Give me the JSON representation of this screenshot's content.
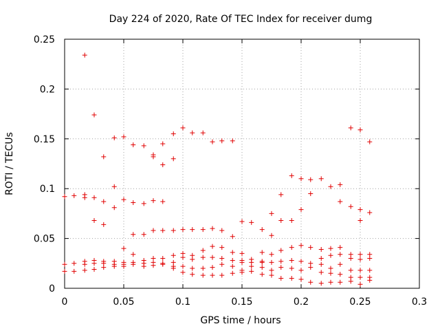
{
  "chart_data": {
    "type": "scatter",
    "title": "Day 224 of 2020, Rate Of TEC Index for receiver dumg",
    "xlabel": "GPS time / hours",
    "ylabel": "ROTI / TECUs",
    "xlim": [
      0,
      0.3
    ],
    "ylim": [
      0,
      0.25
    ],
    "xticks": [
      0,
      0.05,
      0.1,
      0.15,
      0.2,
      0.25,
      0.3
    ],
    "xtick_labels": [
      "0",
      "0.05",
      "0.1",
      "0.15",
      "0.2",
      "0.25",
      "0.3"
    ],
    "yticks": [
      0,
      0.05,
      0.1,
      0.15,
      0.2,
      0.25
    ],
    "ytick_labels": [
      "0",
      "0.05",
      "0.1",
      "0.15",
      "0.2",
      "0.25"
    ],
    "grid": true,
    "marker": "+",
    "color": "#e00000",
    "series": [
      {
        "points": [
          [
            0.0,
            0.092
          ],
          [
            0.0,
            0.024
          ],
          [
            0.0,
            0.017
          ],
          [
            0.008,
            0.093
          ],
          [
            0.008,
            0.025
          ],
          [
            0.008,
            0.017
          ],
          [
            0.017,
            0.234
          ],
          [
            0.017,
            0.094
          ],
          [
            0.017,
            0.091
          ],
          [
            0.017,
            0.027
          ],
          [
            0.017,
            0.024
          ],
          [
            0.017,
            0.018
          ],
          [
            0.025,
            0.174
          ],
          [
            0.025,
            0.091
          ],
          [
            0.025,
            0.068
          ],
          [
            0.025,
            0.028
          ],
          [
            0.025,
            0.025
          ],
          [
            0.025,
            0.019
          ],
          [
            0.033,
            0.132
          ],
          [
            0.033,
            0.087
          ],
          [
            0.033,
            0.064
          ],
          [
            0.033,
            0.027
          ],
          [
            0.033,
            0.025
          ],
          [
            0.033,
            0.021
          ],
          [
            0.042,
            0.151
          ],
          [
            0.042,
            0.102
          ],
          [
            0.042,
            0.081
          ],
          [
            0.042,
            0.027
          ],
          [
            0.042,
            0.024
          ],
          [
            0.042,
            0.022
          ],
          [
            0.05,
            0.152
          ],
          [
            0.05,
            0.089
          ],
          [
            0.05,
            0.04
          ],
          [
            0.05,
            0.026
          ],
          [
            0.05,
            0.024
          ],
          [
            0.05,
            0.022
          ],
          [
            0.058,
            0.144
          ],
          [
            0.058,
            0.086
          ],
          [
            0.058,
            0.054
          ],
          [
            0.058,
            0.034
          ],
          [
            0.058,
            0.026
          ],
          [
            0.058,
            0.024
          ],
          [
            0.067,
            0.143
          ],
          [
            0.067,
            0.085
          ],
          [
            0.067,
            0.054
          ],
          [
            0.067,
            0.028
          ],
          [
            0.067,
            0.025
          ],
          [
            0.067,
            0.022
          ],
          [
            0.075,
            0.134
          ],
          [
            0.075,
            0.132
          ],
          [
            0.075,
            0.088
          ],
          [
            0.075,
            0.058
          ],
          [
            0.075,
            0.03
          ],
          [
            0.075,
            0.026
          ],
          [
            0.075,
            0.023
          ],
          [
            0.083,
            0.145
          ],
          [
            0.083,
            0.124
          ],
          [
            0.083,
            0.087
          ],
          [
            0.083,
            0.058
          ],
          [
            0.083,
            0.03
          ],
          [
            0.083,
            0.025
          ],
          [
            0.083,
            0.024
          ],
          [
            0.092,
            0.155
          ],
          [
            0.092,
            0.13
          ],
          [
            0.092,
            0.058
          ],
          [
            0.092,
            0.033
          ],
          [
            0.092,
            0.026
          ],
          [
            0.092,
            0.022
          ],
          [
            0.092,
            0.02
          ],
          [
            0.1,
            0.161
          ],
          [
            0.1,
            0.059
          ],
          [
            0.1,
            0.035
          ],
          [
            0.1,
            0.031
          ],
          [
            0.1,
            0.022
          ],
          [
            0.1,
            0.016
          ],
          [
            0.108,
            0.156
          ],
          [
            0.108,
            0.059
          ],
          [
            0.108,
            0.033
          ],
          [
            0.108,
            0.029
          ],
          [
            0.108,
            0.02
          ],
          [
            0.108,
            0.014
          ],
          [
            0.117,
            0.156
          ],
          [
            0.117,
            0.059
          ],
          [
            0.117,
            0.038
          ],
          [
            0.117,
            0.031
          ],
          [
            0.117,
            0.02
          ],
          [
            0.117,
            0.013
          ],
          [
            0.125,
            0.147
          ],
          [
            0.125,
            0.06
          ],
          [
            0.125,
            0.042
          ],
          [
            0.125,
            0.031
          ],
          [
            0.125,
            0.021
          ],
          [
            0.125,
            0.013
          ],
          [
            0.133,
            0.148
          ],
          [
            0.133,
            0.058
          ],
          [
            0.133,
            0.041
          ],
          [
            0.133,
            0.03
          ],
          [
            0.133,
            0.024
          ],
          [
            0.133,
            0.013
          ],
          [
            0.142,
            0.148
          ],
          [
            0.142,
            0.052
          ],
          [
            0.142,
            0.036
          ],
          [
            0.142,
            0.028
          ],
          [
            0.142,
            0.022
          ],
          [
            0.142,
            0.015
          ],
          [
            0.15,
            0.067
          ],
          [
            0.15,
            0.035
          ],
          [
            0.15,
            0.028
          ],
          [
            0.15,
            0.026
          ],
          [
            0.15,
            0.018
          ],
          [
            0.15,
            0.016
          ],
          [
            0.158,
            0.066
          ],
          [
            0.158,
            0.029
          ],
          [
            0.158,
            0.026
          ],
          [
            0.158,
            0.022
          ],
          [
            0.158,
            0.017
          ],
          [
            0.167,
            0.059
          ],
          [
            0.167,
            0.036
          ],
          [
            0.167,
            0.027
          ],
          [
            0.167,
            0.026
          ],
          [
            0.167,
            0.021
          ],
          [
            0.167,
            0.014
          ],
          [
            0.175,
            0.075
          ],
          [
            0.175,
            0.053
          ],
          [
            0.175,
            0.034
          ],
          [
            0.175,
            0.026
          ],
          [
            0.175,
            0.018
          ],
          [
            0.175,
            0.013
          ],
          [
            0.183,
            0.094
          ],
          [
            0.183,
            0.068
          ],
          [
            0.183,
            0.038
          ],
          [
            0.183,
            0.027
          ],
          [
            0.183,
            0.021
          ],
          [
            0.183,
            0.01
          ],
          [
            0.192,
            0.113
          ],
          [
            0.192,
            0.068
          ],
          [
            0.192,
            0.041
          ],
          [
            0.192,
            0.028
          ],
          [
            0.192,
            0.02
          ],
          [
            0.192,
            0.01
          ],
          [
            0.2,
            0.11
          ],
          [
            0.2,
            0.079
          ],
          [
            0.2,
            0.043
          ],
          [
            0.2,
            0.027
          ],
          [
            0.2,
            0.018
          ],
          [
            0.2,
            0.009
          ],
          [
            0.208,
            0.109
          ],
          [
            0.208,
            0.095
          ],
          [
            0.208,
            0.041
          ],
          [
            0.208,
            0.025
          ],
          [
            0.208,
            0.021
          ],
          [
            0.208,
            0.006
          ],
          [
            0.217,
            0.11
          ],
          [
            0.217,
            0.039
          ],
          [
            0.217,
            0.03
          ],
          [
            0.217,
            0.024
          ],
          [
            0.217,
            0.016
          ],
          [
            0.217,
            0.005
          ],
          [
            0.225,
            0.102
          ],
          [
            0.225,
            0.04
          ],
          [
            0.225,
            0.033
          ],
          [
            0.225,
            0.02
          ],
          [
            0.225,
            0.015
          ],
          [
            0.225,
            0.006
          ],
          [
            0.233,
            0.104
          ],
          [
            0.233,
            0.087
          ],
          [
            0.233,
            0.041
          ],
          [
            0.233,
            0.034
          ],
          [
            0.233,
            0.024
          ],
          [
            0.233,
            0.014
          ],
          [
            0.233,
            0.006
          ],
          [
            0.242,
            0.161
          ],
          [
            0.242,
            0.082
          ],
          [
            0.242,
            0.034
          ],
          [
            0.242,
            0.03
          ],
          [
            0.242,
            0.018
          ],
          [
            0.242,
            0.011
          ],
          [
            0.242,
            0.007
          ],
          [
            0.25,
            0.159
          ],
          [
            0.25,
            0.079
          ],
          [
            0.25,
            0.068
          ],
          [
            0.25,
            0.034
          ],
          [
            0.25,
            0.029
          ],
          [
            0.25,
            0.018
          ],
          [
            0.25,
            0.011
          ],
          [
            0.25,
            0.004
          ],
          [
            0.258,
            0.147
          ],
          [
            0.258,
            0.076
          ],
          [
            0.258,
            0.034
          ],
          [
            0.258,
            0.03
          ],
          [
            0.258,
            0.018
          ],
          [
            0.258,
            0.011
          ],
          [
            0.258,
            0.008
          ]
        ]
      }
    ]
  }
}
